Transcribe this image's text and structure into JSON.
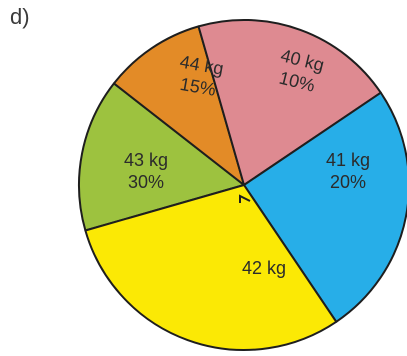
{
  "problem_label": "d)",
  "chart_data": {
    "type": "pie",
    "title": "",
    "start_angle_deg": 254,
    "direction": "clockwise",
    "slices": [
      {
        "label": "44 kg",
        "percent_label": "15%",
        "value": 15,
        "color": "#9dc23f",
        "label_rotation": 10
      },
      {
        "label": "40 kg",
        "percent_label": "10%",
        "value": 10,
        "color": "#e38b27",
        "label_rotation": 14
      },
      {
        "label": "41 kg",
        "percent_label": "20%",
        "value": 20,
        "color": "#de8a91",
        "label_rotation": 0
      },
      {
        "label": "42 kg",
        "percent_label": "",
        "value": 25,
        "color": "#27aee8",
        "label_rotation": 0
      },
      {
        "label": "43 kg",
        "percent_label": "30%",
        "value": 30,
        "color": "#fbe905",
        "label_rotation": 0
      }
    ],
    "right_angle_marker": true
  }
}
